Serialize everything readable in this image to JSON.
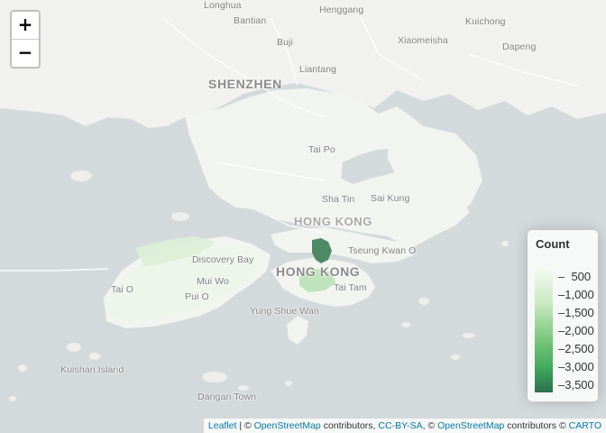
{
  "zoom": {
    "in_label": "+",
    "out_label": "−"
  },
  "labels": {
    "longhua": "Longhua",
    "bantian": "Bantian",
    "henggang": "Henggang",
    "buji": "Buji",
    "xiaomeisha": "Xiaomeisha",
    "kuichong": "Kuichong",
    "dapeng": "Dapeng",
    "liantang": "Liantang",
    "shenzhen": "SHENZHEN",
    "taipo": "Tai Po",
    "shatin": "Sha Tin",
    "saikung": "Sai Kung",
    "hongkong_upper": "HONG KONG",
    "tseungkwano": "Tseung Kwan O",
    "discoverybay": "Discovery Bay",
    "hongkong_lower": "HONG KONG",
    "muiwo": "Mui Wo",
    "taio": "Tai O",
    "puio": "Pui O",
    "taitam": "Tai Tam",
    "yungshuewan": "Yung Shue Wan",
    "kuishan": "Kuishan Island",
    "dangan": "Dangan Town"
  },
  "legend": {
    "title": "Count",
    "ticks": [
      "500",
      "1,000",
      "1,500",
      "2,000",
      "2,500",
      "3,000",
      "3,500"
    ],
    "color_low": "#f7fcf5",
    "color_high": "#2d6e4c"
  },
  "attribution": {
    "leaflet": "Leaflet",
    "sep1": " | © ",
    "osm1": "OpenStreetMap",
    "contrib1": " contributors, ",
    "ccbysa": "CC-BY-SA",
    "sep2": ", © ",
    "osm2": "OpenStreetMap",
    "contrib2": " contributors © ",
    "carto": "CARTO"
  },
  "colors": {
    "sea": "#d4dadc",
    "land": "#f2f2f0",
    "district_max": "#4d8a63",
    "district_mid": "#b9e1b5"
  }
}
